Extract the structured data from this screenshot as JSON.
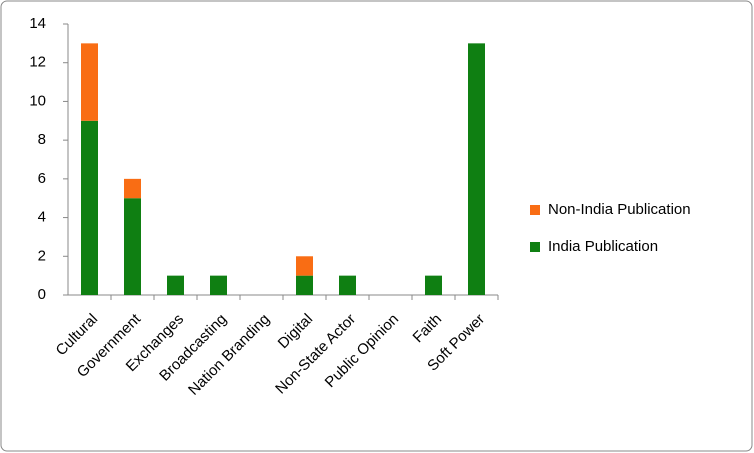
{
  "chart_data": {
    "type": "stacked_bar",
    "categories": [
      "Cultural",
      "Government",
      "Exchanges",
      "Broadcasting",
      "Nation Branding",
      "Digital",
      "Non-State Actor",
      "Public Opinion",
      "Faith",
      "Soft Power"
    ],
    "series": [
      {
        "name": "India Publication",
        "color": "#0f7f12",
        "values": [
          9,
          5,
          1,
          1,
          0,
          1,
          1,
          0,
          1,
          13
        ]
      },
      {
        "name": "Non-India Publication",
        "color": "#f96d14",
        "values": [
          4,
          1,
          0,
          0,
          0,
          1,
          0,
          0,
          0,
          0
        ]
      }
    ],
    "ylim": [
      0,
      14
    ],
    "yticks": [
      0,
      2,
      4,
      6,
      8,
      10,
      12,
      14
    ],
    "grid": false,
    "legend": "right"
  }
}
